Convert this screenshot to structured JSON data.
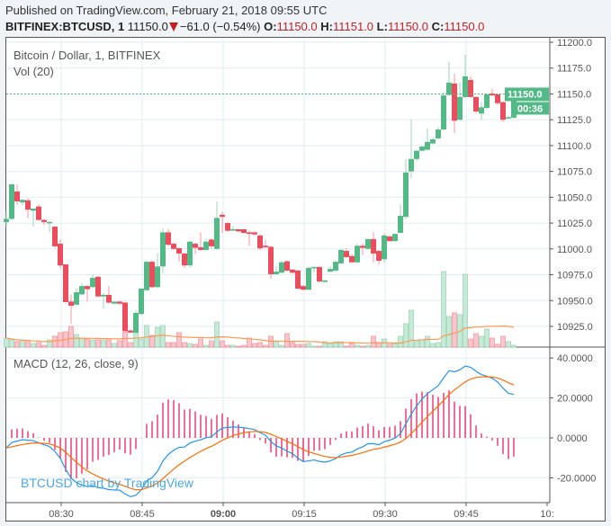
{
  "header": {
    "published": "Published on TradingView.com, February 21, 2018 09:55 UTC",
    "symbol": "BITFINEX:BTCUSD, 1",
    "last": "11150.0",
    "change": "−61.0 (−0.54%)",
    "o_label": "O:",
    "o": "11150.0",
    "h_label": "H:",
    "h": "11151.0",
    "l_label": "L:",
    "l": "11150.0",
    "c_label": "C:",
    "c": "11150.0",
    "direction_icon": "triangle-down-icon"
  },
  "legend": {
    "title": "Bitcoin / Dollar, 1, BITFINEX",
    "volume": "Vol (20)",
    "macd": "MACD (12, 26, close, 9)"
  },
  "watermark": "BTCUSD chart by TradingView",
  "price_tag": {
    "price": "11150.0",
    "countdown": "00:36"
  },
  "colors": {
    "up": "#53b987",
    "down": "#eb4d5c",
    "vol_up": "#c8e9d8",
    "vol_down": "#f9c6cb",
    "vol_ma": "#ff9850",
    "macd": "#2196f3",
    "signal": "#ff6d00",
    "hist": "#e91e63",
    "grid": "#e1ecf2",
    "last_price": "#53b987"
  },
  "chart_data": {
    "type": "candlestick",
    "interval": "1 minute",
    "price_axis": {
      "ticks": [
        "11200.0",
        "11175.0",
        "11150.0",
        "11125.0",
        "11100.0",
        "11075.0",
        "11050.0",
        "11025.0",
        "11000.0",
        "10975.0",
        "10950.0",
        "10925.0"
      ],
      "range": [
        10910,
        11205
      ]
    },
    "macd_axis": {
      "ticks": [
        "40.0000",
        "20.0000",
        "0.0000",
        "-20.0000"
      ],
      "range": [
        -33,
        45
      ]
    },
    "time_axis": {
      "ticks": [
        "08:30",
        "08:45",
        "09:00",
        "09:15",
        "09:30",
        "09:45",
        "10:"
      ],
      "bold": "09:00"
    },
    "grid": true,
    "first_bar_time": "08:20",
    "ohlc": [
      [
        11026,
        11036,
        11021,
        11029
      ],
      [
        11029,
        11063,
        11028,
        11062.5
      ],
      [
        11055.5,
        11062.5,
        11042.5,
        11046
      ],
      [
        11045,
        11048,
        11042,
        11047.5
      ],
      [
        11047,
        11049,
        11029.5,
        11038
      ],
      [
        11037,
        11039,
        11021.5,
        11039
      ],
      [
        11041,
        11043,
        11027,
        11028
      ],
      [
        11028,
        11029,
        11023,
        11026
      ],
      [
        11025,
        11027,
        11016,
        11026
      ],
      [
        11021.5,
        11022,
        11001,
        11002.5
      ],
      [
        11005,
        11009,
        10981,
        10984
      ],
      [
        10985,
        10985,
        10948,
        10948.5
      ],
      [
        10949,
        10956,
        10927.5,
        10945
      ],
      [
        10946,
        10962,
        10946,
        10958
      ],
      [
        10956,
        10967,
        10955,
        10964
      ],
      [
        10964,
        10965,
        10949,
        10961
      ],
      [
        10963,
        10975,
        10962,
        10972
      ],
      [
        10973,
        10974,
        10953,
        10954
      ],
      [
        10954,
        10957,
        10942,
        10955.5
      ],
      [
        10955.5,
        10964,
        10947,
        10948
      ],
      [
        10947,
        10949,
        10947,
        10949
      ],
      [
        10949,
        10949.5,
        10946,
        10947
      ],
      [
        10948,
        10949,
        10919,
        10920.5
      ],
      [
        10921,
        10922,
        10918.5,
        10919
      ],
      [
        10919,
        10941,
        10918,
        10938
      ],
      [
        10937,
        10962,
        10936,
        10961.5
      ],
      [
        10960,
        10989,
        10959,
        10987.5
      ],
      [
        10987.5,
        10989,
        10962,
        10963
      ],
      [
        10963,
        10996,
        10962,
        10983
      ],
      [
        10983,
        11020,
        10976.5,
        11016
      ],
      [
        11016,
        11019,
        11003,
        11004
      ],
      [
        11005,
        11006,
        10999,
        11000
      ],
      [
        11000.7,
        11001,
        10987.5,
        10995.5
      ],
      [
        10995.5,
        10996,
        10981.5,
        10984
      ],
      [
        10984,
        11008,
        10982,
        11007
      ],
      [
        11005,
        11006,
        10995,
        11001
      ],
      [
        11001.5,
        11016,
        10998,
        10999
      ],
      [
        10999,
        11010,
        10998,
        11007
      ],
      [
        11009,
        11010,
        11000,
        11002.5
      ],
      [
        11000,
        11046,
        10999,
        11030
      ],
      [
        11033,
        11036,
        11015.5,
        11031
      ],
      [
        11025,
        11026,
        11016.5,
        11017.5
      ],
      [
        11018,
        11022,
        11017,
        11019
      ],
      [
        11019,
        11019.5,
        11016,
        11017
      ],
      [
        11019,
        11019,
        11015,
        11015.5
      ],
      [
        11016,
        11018,
        11003,
        11014.5
      ],
      [
        11016,
        11017,
        11013,
        11014
      ],
      [
        11013,
        11014,
        10999,
        11000.5
      ],
      [
        11003,
        11009,
        11001,
        11001.5
      ],
      [
        11002,
        11003,
        10971,
        10975.5
      ],
      [
        10975.5,
        10983.5,
        10975,
        10978
      ],
      [
        10977,
        10989,
        10976,
        10987
      ],
      [
        10988,
        10989,
        10978,
        10979
      ],
      [
        10980,
        10980.5,
        10976,
        10977
      ],
      [
        10979,
        10980,
        10961,
        10961.5
      ],
      [
        10964,
        10965,
        10960,
        10960.5
      ],
      [
        10960.5,
        10983,
        10960,
        10981.5
      ],
      [
        10981.5,
        10983,
        10977,
        10982.5
      ],
      [
        10982.5,
        10983,
        10967,
        10968.5
      ],
      [
        10968,
        10970,
        10968,
        10969.5
      ],
      [
        10978,
        10983.5,
        10977,
        10980.5
      ],
      [
        10979,
        10989,
        10978,
        10987.5
      ],
      [
        10986,
        11000,
        10985,
        10999
      ],
      [
        10998,
        11000.5,
        10991,
        10992
      ],
      [
        10993,
        10995,
        10986.5,
        10987
      ],
      [
        10987,
        11005,
        10986,
        11003
      ],
      [
        11003,
        11005,
        10994,
        11001
      ],
      [
        11000,
        11010,
        10999,
        11009.5
      ],
      [
        11009.5,
        11016.5,
        10987,
        10995.5
      ],
      [
        10998,
        10999,
        10985,
        10988.5
      ],
      [
        10990,
        11015,
        10987,
        11013
      ],
      [
        11012,
        11013,
        11007,
        11007.5
      ],
      [
        11007.5,
        11015,
        11007,
        11014.5
      ],
      [
        11015.5,
        11043,
        11015,
        11032
      ],
      [
        11031,
        11087,
        11029,
        11074
      ],
      [
        11075,
        11125,
        11068.5,
        11087
      ],
      [
        11087,
        11095.5,
        11085,
        11095
      ],
      [
        11095,
        11100,
        11094,
        11099
      ],
      [
        11096,
        11116.5,
        11095,
        11103.5
      ],
      [
        11102,
        11108,
        11101,
        11106
      ],
      [
        11107,
        11118,
        11106,
        11115.5
      ],
      [
        11115.5,
        11152,
        11115,
        11148.5
      ],
      [
        11149,
        11181,
        11148,
        11161
      ],
      [
        11160,
        11169.5,
        11112,
        11124
      ],
      [
        11125,
        11161,
        11124,
        11147
      ],
      [
        11147,
        11188,
        11146,
        11167
      ],
      [
        11163.5,
        11167,
        11146,
        11147
      ],
      [
        11147,
        11148,
        11131,
        11133
      ],
      [
        11131,
        11142,
        11125,
        11137
      ],
      [
        11136.5,
        11150,
        11135,
        11149.5
      ],
      [
        11150.5,
        11155,
        11148,
        11148.5
      ],
      [
        11149.5,
        11150,
        11139,
        11141
      ],
      [
        11142,
        11143,
        11123,
        11125
      ],
      [
        11127,
        11129,
        11126,
        11127.5
      ],
      [
        11127,
        11151,
        11126,
        11150
      ]
    ],
    "volume": [
      10,
      8,
      6,
      7,
      6,
      4,
      5,
      2,
      8,
      12,
      16,
      17,
      23,
      14,
      10,
      9,
      8,
      8,
      8,
      8,
      4,
      7,
      17,
      5,
      16,
      9,
      24,
      13,
      22,
      24,
      5,
      5,
      16,
      5,
      4,
      3,
      9,
      2,
      7,
      28,
      7,
      2,
      2,
      1,
      2,
      10,
      4,
      5,
      2,
      12,
      6,
      2,
      15,
      5,
      3,
      3,
      4,
      1,
      1,
      6,
      4,
      6,
      6,
      1,
      4,
      2,
      1,
      2,
      12,
      5,
      9,
      3,
      5,
      12,
      26,
      41,
      7,
      8,
      12,
      4,
      5,
      84,
      34,
      38,
      36,
      81,
      9,
      15,
      12,
      20,
      10,
      3,
      12,
      6,
      2
    ],
    "volume_ma_period": 20,
    "macd": {
      "fast": 12,
      "slow": 26,
      "source": "close",
      "signal": 9
    },
    "last_price": 11150.0
  }
}
